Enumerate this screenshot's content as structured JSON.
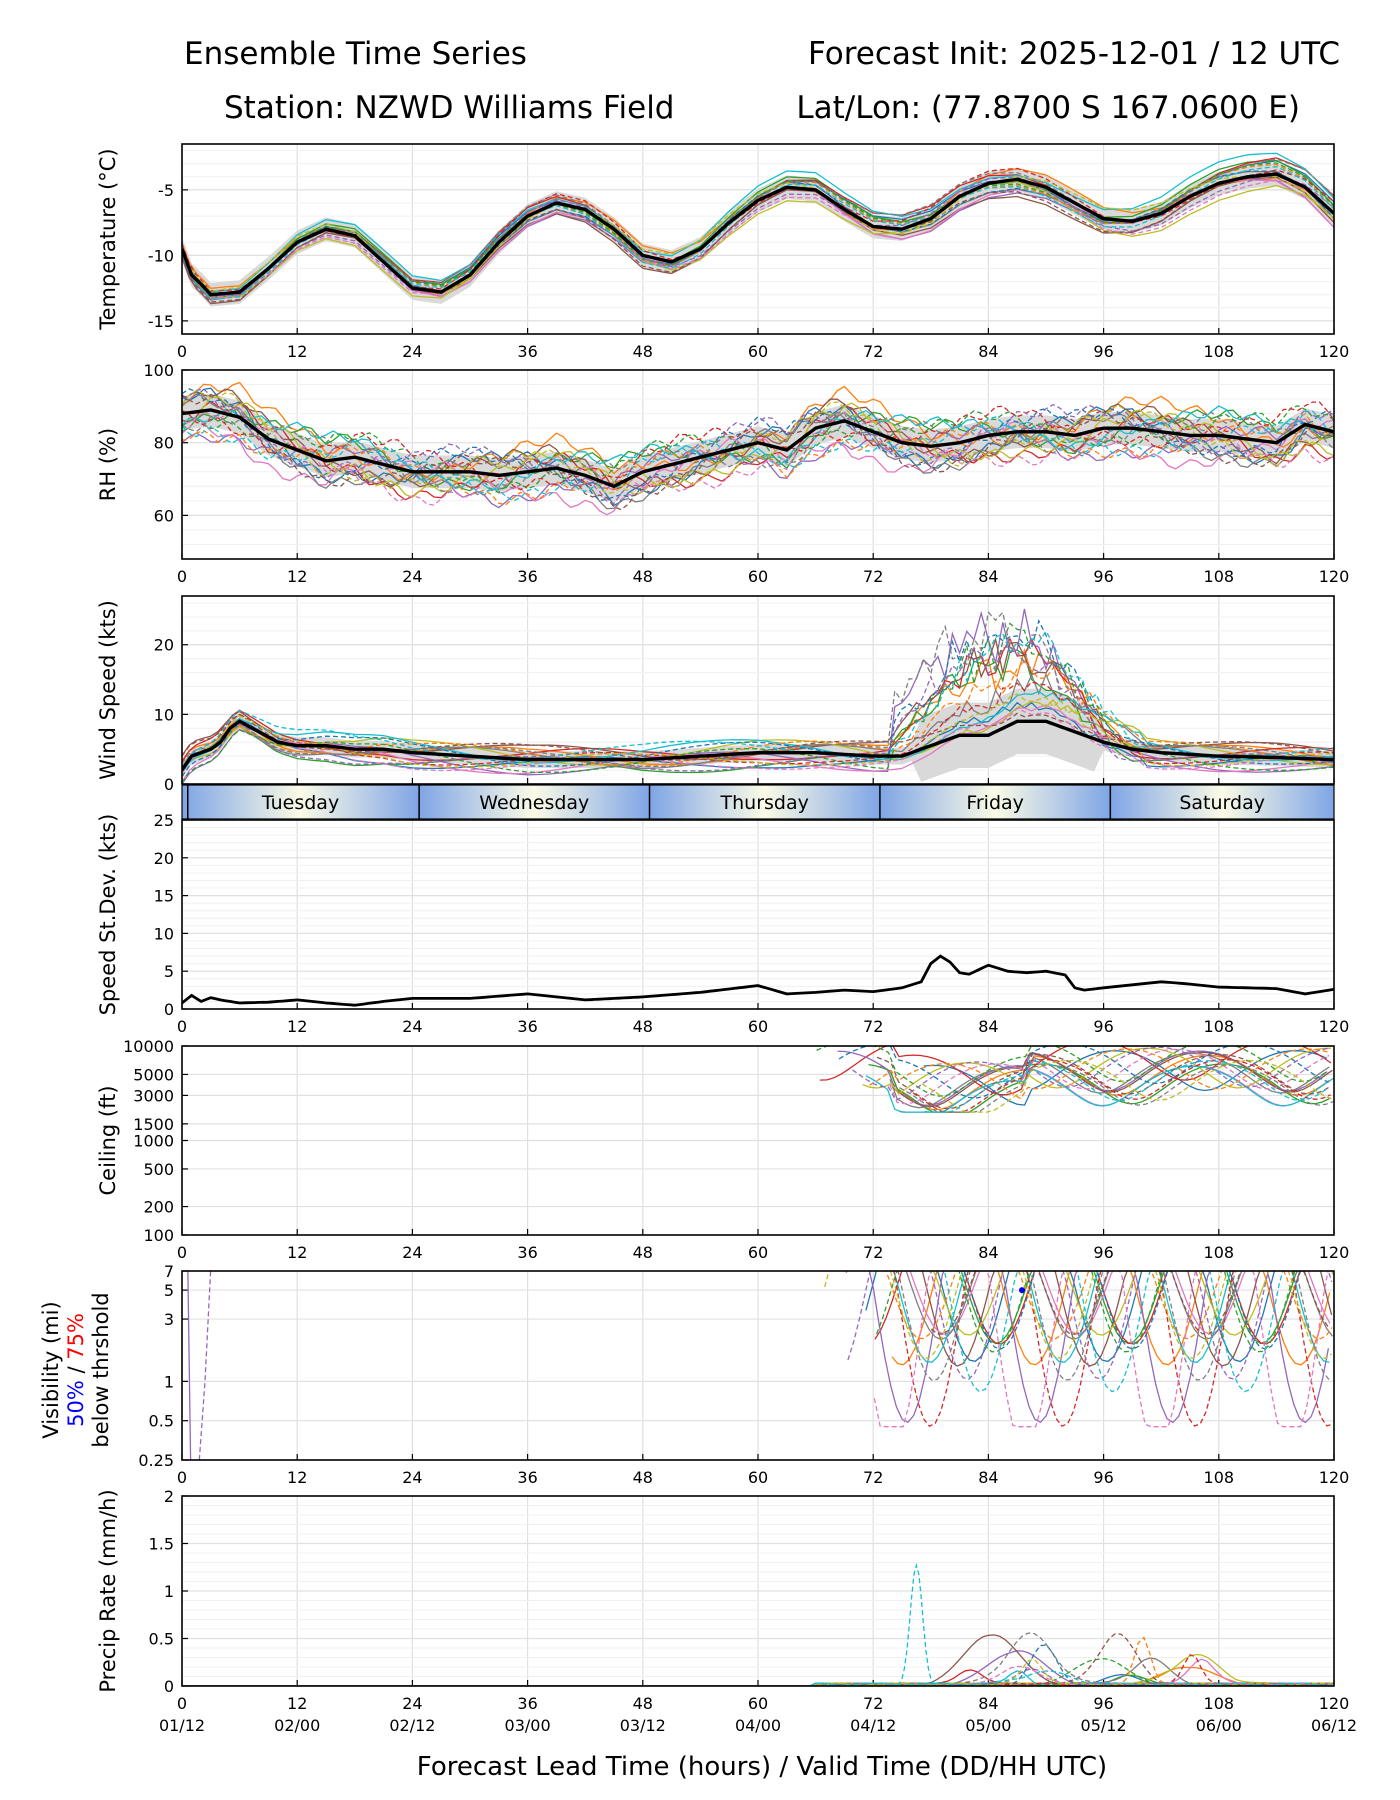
{
  "header": {
    "title_left": "Ensemble Time Series",
    "title_right": "Forecast Init: 2025-12-01 / 12 UTC",
    "station": "Station: NZWD Williams Field",
    "latlon": "Lat/Lon: (77.8700 S 167.0600 E)"
  },
  "colors": {
    "ensemble": [
      "#1f77b4",
      "#ff7f0e",
      "#2ca02c",
      "#d62728",
      "#9467bd",
      "#8c564b",
      "#e377c2",
      "#7f7f7f",
      "#bcbd22",
      "#17becf"
    ],
    "mean": "#000000",
    "spread": "#d9d9d9",
    "grid": "#e0e0e0",
    "day_band_edge": "#7fa5e6",
    "day_band_mid": "#fbfbe6",
    "vis_50": "#0000ff",
    "vis_75": "#ff0000"
  },
  "chart_data": [
    {
      "id": "temperature",
      "type": "line",
      "ylabel": "Temperature (°C)",
      "ylim": [
        -16,
        -1.5
      ],
      "yticks": [
        -15,
        -10,
        -5
      ],
      "xlim": [
        0,
        120
      ],
      "members": 20,
      "mean": {
        "x": [
          0,
          1,
          2,
          3,
          6,
          9,
          12,
          15,
          18,
          21,
          24,
          27,
          30,
          33,
          36,
          39,
          42,
          45,
          48,
          51,
          54,
          57,
          60,
          63,
          66,
          69,
          72,
          75,
          78,
          81,
          84,
          87,
          90,
          93,
          96,
          99,
          102,
          105,
          108,
          111,
          114,
          117,
          120
        ],
        "y": [
          -9.5,
          -11.5,
          -12.2,
          -13.0,
          -12.8,
          -11.0,
          -9.0,
          -8.0,
          -8.5,
          -10.5,
          -12.5,
          -12.8,
          -11.5,
          -9.0,
          -7.0,
          -6.0,
          -6.5,
          -8.0,
          -10.0,
          -10.5,
          -9.5,
          -7.5,
          -5.8,
          -4.8,
          -5.0,
          -6.5,
          -7.8,
          -8.0,
          -7.2,
          -5.5,
          -4.5,
          -4.2,
          -4.8,
          -6.0,
          -7.2,
          -7.4,
          -6.8,
          -5.5,
          -4.5,
          -4.0,
          -3.8,
          -4.8,
          -6.8
        ]
      }
    },
    {
      "id": "rh",
      "type": "line",
      "ylabel": "RH (%)",
      "ylim": [
        48,
        100
      ],
      "yticks": [
        60,
        80,
        100
      ],
      "xlim": [
        0,
        120
      ],
      "members": 20,
      "mean": {
        "x": [
          0,
          3,
          6,
          9,
          12,
          15,
          18,
          21,
          24,
          27,
          30,
          33,
          36,
          39,
          42,
          45,
          48,
          51,
          54,
          57,
          60,
          63,
          66,
          69,
          72,
          75,
          78,
          81,
          84,
          87,
          90,
          93,
          96,
          99,
          102,
          105,
          108,
          111,
          114,
          117,
          120
        ],
        "y": [
          88,
          89,
          87,
          81,
          78,
          75,
          76,
          74,
          72,
          72,
          72,
          71,
          72,
          73,
          71,
          68,
          72,
          74,
          76,
          78,
          80,
          78,
          84,
          86,
          83,
          80,
          79,
          80,
          82,
          83,
          83,
          82,
          84,
          84,
          83,
          82,
          82,
          81,
          80,
          85,
          83
        ]
      }
    },
    {
      "id": "wind_speed",
      "type": "line",
      "ylabel": "Wind Speed (kts)",
      "ylim": [
        0,
        27
      ],
      "yticks": [
        0,
        10,
        20
      ],
      "xlim": [
        0,
        120
      ],
      "members": 20,
      "mean": {
        "x": [
          0,
          1,
          2,
          3,
          4,
          5,
          6,
          8,
          10,
          12,
          15,
          18,
          21,
          24,
          30,
          36,
          42,
          48,
          54,
          60,
          66,
          72,
          75,
          78,
          81,
          84,
          87,
          90,
          93,
          96,
          99,
          102,
          108,
          114,
          120
        ],
        "y": [
          2,
          4,
          4.5,
          5,
          6,
          8,
          9,
          7.5,
          6,
          5.5,
          5.5,
          5,
          5,
          4.5,
          4,
          3.5,
          3.5,
          3.5,
          4,
          4.5,
          4.5,
          4,
          4,
          5.5,
          7,
          7,
          9,
          9,
          7.5,
          6,
          5,
          4.5,
          4,
          3.8,
          3.5
        ]
      },
      "day_labels": [
        {
          "label": "Tuesday",
          "start": 0,
          "end": 24.7
        },
        {
          "label": "Wednesday",
          "start": 24.7,
          "end": 48.7
        },
        {
          "label": "Thursday",
          "start": 48.7,
          "end": 72.7
        },
        {
          "label": "Friday",
          "start": 72.7,
          "end": 96.7
        },
        {
          "label": "Saturday",
          "start": 96.7,
          "end": 120
        }
      ]
    },
    {
      "id": "speed_stdev",
      "type": "line",
      "ylabel": "Speed St.Dev. (kts)",
      "ylim": [
        0,
        25
      ],
      "yticks": [
        0,
        5,
        10,
        15,
        20,
        25
      ],
      "xlim": [
        0,
        120
      ],
      "mean": {
        "x": [
          0,
          1,
          2,
          3,
          4,
          6,
          9,
          12,
          15,
          18,
          21,
          24,
          30,
          36,
          42,
          48,
          54,
          60,
          63,
          66,
          69,
          72,
          75,
          77,
          78,
          79,
          80,
          81,
          82,
          84,
          86,
          88,
          90,
          92,
          93,
          94,
          96,
          99,
          102,
          105,
          108,
          111,
          114,
          117,
          120
        ],
        "y": [
          0.8,
          1.8,
          1.0,
          1.5,
          1.2,
          0.8,
          0.9,
          1.2,
          0.8,
          0.5,
          1.0,
          1.4,
          1.4,
          2.0,
          1.2,
          1.6,
          2.2,
          3.1,
          2.0,
          2.2,
          2.5,
          2.3,
          2.8,
          3.6,
          6.0,
          7.0,
          6.2,
          4.8,
          4.6,
          5.8,
          5.0,
          4.8,
          5.0,
          4.5,
          2.8,
          2.5,
          2.8,
          3.2,
          3.6,
          3.3,
          2.9,
          2.8,
          2.7,
          2.0,
          2.6
        ]
      }
    },
    {
      "id": "ceiling",
      "type": "line",
      "yscale": "log",
      "ylabel": "Ceiling (ft)",
      "ylim": [
        100,
        10000
      ],
      "yticks": [
        100,
        200,
        500,
        1000,
        1500,
        3000,
        5000,
        10000
      ],
      "xlim": [
        0,
        120
      ],
      "members": 20
    },
    {
      "id": "visibility",
      "type": "line",
      "yscale": "log",
      "ylabel": "Visibility (mi)",
      "ylabel_sub_50": "50%",
      "ylabel_sub_sep": " / ",
      "ylabel_sub_75": "75%",
      "ylabel_sub_3": "below thrshold",
      "ylim": [
        0.25,
        7
      ],
      "yticks": [
        0.25,
        0.5,
        1,
        3,
        5,
        7
      ],
      "xlim": [
        0,
        120
      ],
      "members": 20
    },
    {
      "id": "precip_rate",
      "type": "line",
      "ylabel": "Precip Rate (mm/h)",
      "ylim": [
        0,
        2.0
      ],
      "yticks": [
        0.0,
        0.5,
        1.0,
        1.5,
        2.0
      ],
      "xlim": [
        0,
        120
      ],
      "members": 20
    }
  ],
  "x_axis": {
    "ticks": [
      0,
      12,
      24,
      36,
      48,
      60,
      72,
      84,
      96,
      108,
      120
    ],
    "valid_times": [
      "01/12",
      "02/00",
      "02/12",
      "03/00",
      "03/12",
      "04/00",
      "04/12",
      "05/00",
      "05/12",
      "06/00",
      "06/12"
    ],
    "label": "Forecast Lead Time (hours) / Valid Time (DD/HH UTC)"
  }
}
